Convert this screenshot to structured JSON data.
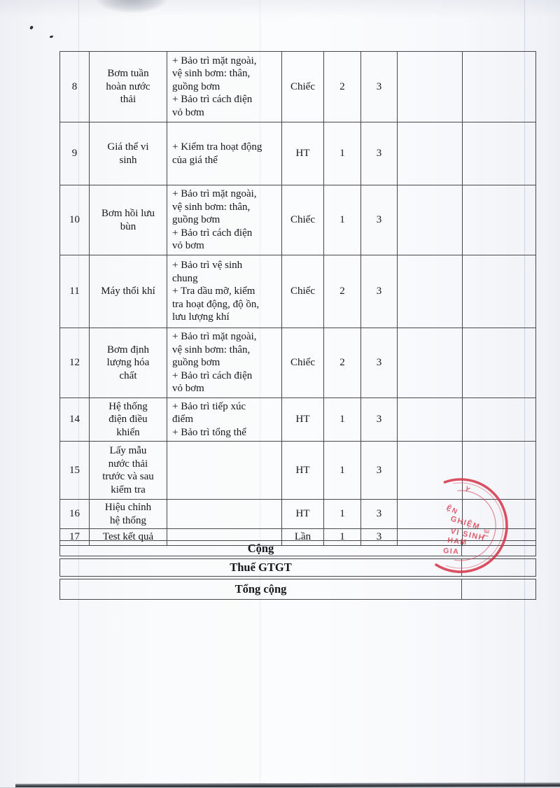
{
  "document": {
    "kind": "scanned maintenance quotation table (continuation page)",
    "summary": [
      {
        "label": "Cộng",
        "value": ""
      },
      {
        "label": "Thuế GTGT",
        "value": ""
      },
      {
        "label": "Tổng cộng",
        "value": ""
      }
    ]
  },
  "table": {
    "rows": [
      {
        "no": "8",
        "name": "Bơm tuần\nhoàn nước\nthải",
        "desc": "+ Bảo trì  mặt ngoài,\nvệ sinh bơm: thân,\nguồng bơm\n+ Bảo trì  cách điện\nvỏ bơm",
        "unit": "Chiếc",
        "qty": "2",
        "freq": "3",
        "col7": "",
        "col8": ""
      },
      {
        "no": "9",
        "name": "Giá thể vi\nsinh",
        "desc": "+ Kiểm tra hoạt động\ncủa giá thể",
        "unit": "HT",
        "qty": "1",
        "freq": "3",
        "col7": "",
        "col8": ""
      },
      {
        "no": "10",
        "name": "Bơm hồi lưu\nbùn",
        "desc": "+ Bảo trì  mặt ngoài,\nvệ sinh bơm: thân,\nguồng bơm\n+ Bảo trì  cách điện\nvỏ bơm",
        "unit": "Chiếc",
        "qty": "1",
        "freq": "3",
        "col7": "",
        "col8": ""
      },
      {
        "no": "11",
        "name": "Máy thổi khí",
        "desc": "+ Bảo trì vệ sinh\nchung\n+ Tra dầu mỡ, kiểm\ntra hoạt động, độ ồn,\nlưu lượng khí",
        "unit": "Chiếc",
        "qty": "2",
        "freq": "3",
        "col7": "",
        "col8": ""
      },
      {
        "no": "12",
        "name": "Bơm định\nlượng hóa\nchất",
        "desc": "+ Bảo trì  mặt ngoài,\nvệ sinh bơm: thân,\nguồng bơm\n+ Bảo trì  cách điện\nvỏ bơm",
        "unit": "Chiếc",
        "qty": "2",
        "freq": "3",
        "col7": "",
        "col8": ""
      },
      {
        "no": "14",
        "name": "Hệ thống\nđiện điều\nkhiển",
        "desc": "+ Bảo trì tiếp xúc\nđiểm\n+ Bảo trì tổng thể",
        "unit": "HT",
        "qty": "1",
        "freq": "3",
        "col7": "",
        "col8": ""
      },
      {
        "no": "15",
        "name": "Lấy mẫu\nnước thải\ntrước và sau\nkiểm tra",
        "desc": "",
        "unit": "HT",
        "qty": "1",
        "freq": "3",
        "col7": "",
        "col8": ""
      },
      {
        "no": "16",
        "name": "Hiệu chỉnh\nhệ thống",
        "desc": "",
        "unit": "HT",
        "qty": "1",
        "freq": "3",
        "col7": "",
        "col8": ""
      },
      {
        "no": "17",
        "name": "Test kết quả",
        "desc": "",
        "unit": "Lần",
        "qty": "1",
        "freq": "3",
        "col7": "",
        "col8": ""
      }
    ]
  },
  "stamp": {
    "color": "#d23247",
    "fragments": [
      "Y",
      "ỆN",
      "GHIỆM",
      "VI SINH",
      "HAM",
      "GIA",
      "TẾ"
    ]
  }
}
